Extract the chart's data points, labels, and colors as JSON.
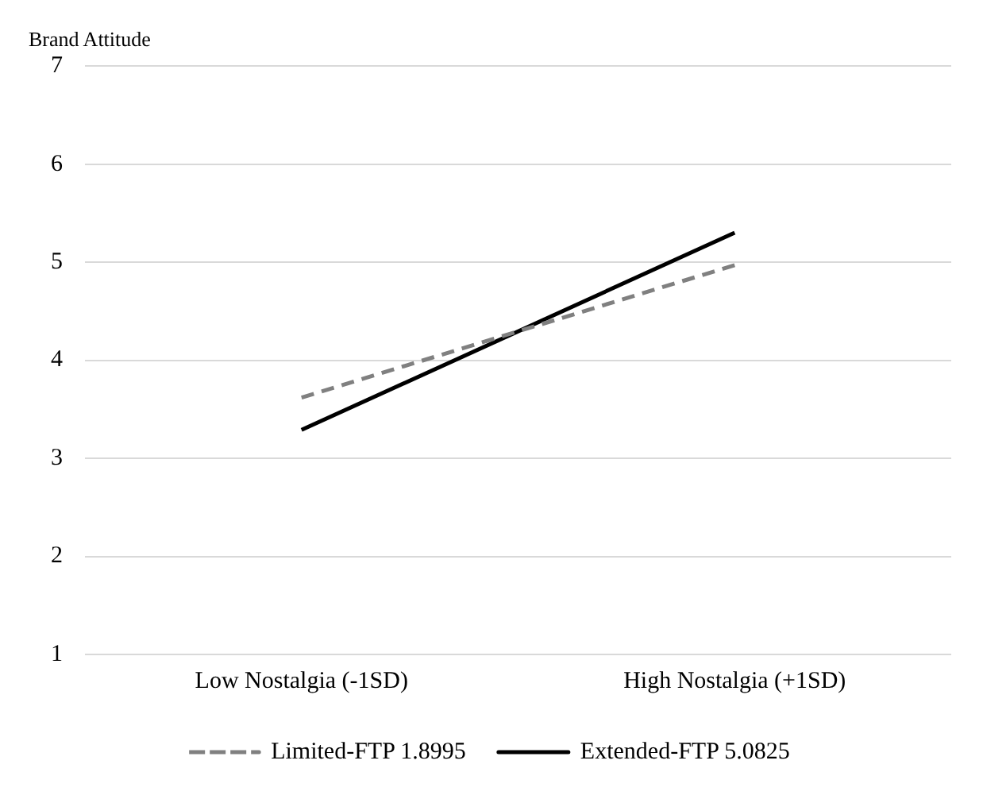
{
  "chart_data": {
    "type": "line",
    "ylabel": "Brand Attitude",
    "categories": [
      "Low Nostalgia (-1SD)",
      "High Nostalgia (+1SD)"
    ],
    "series": [
      {
        "name": "Limited-FTP 1.8995",
        "color": "#808080",
        "values": [
          3.62,
          4.97
        ],
        "line_style": "dashed"
      },
      {
        "name": "Extended-FTP 5.0825",
        "color": "#000000",
        "values": [
          3.29,
          5.3
        ],
        "line_style": "solid"
      }
    ],
    "ylim": [
      1,
      7
    ],
    "yticks": [
      1,
      2,
      3,
      4,
      5,
      6,
      7
    ],
    "grid": "y",
    "legend": "bottom",
    "marker": "none"
  }
}
